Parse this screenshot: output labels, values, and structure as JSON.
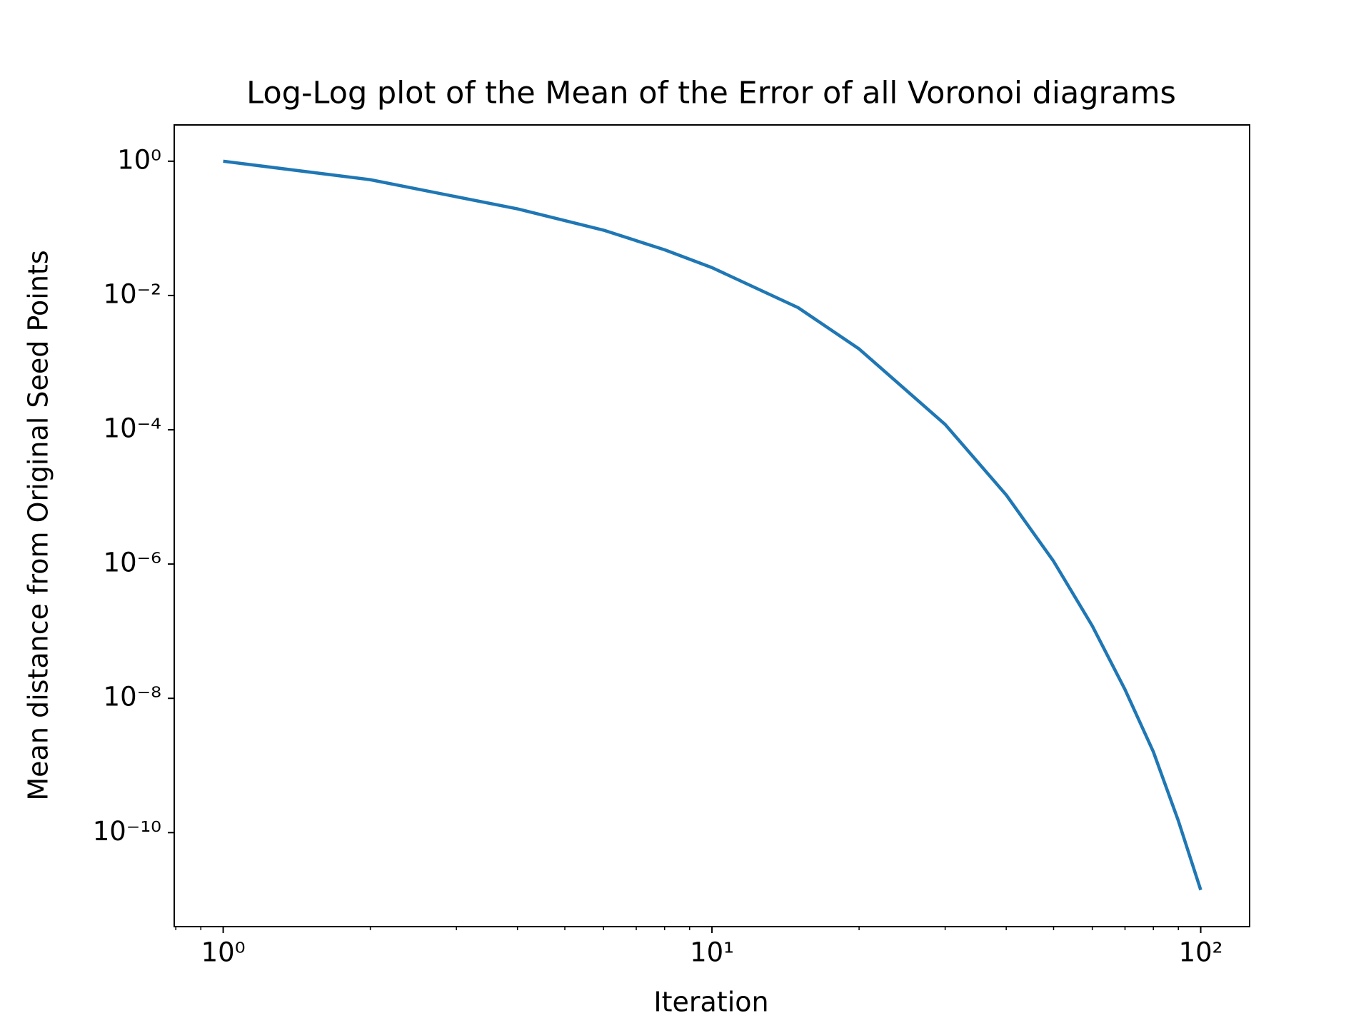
{
  "chart_data": {
    "type": "line",
    "title": "Log-Log plot of the Mean of the Error of all Voronoi diagrams",
    "xlabel": "Iteration",
    "ylabel": "Mean distance from Original Seed Points",
    "xscale": "log",
    "yscale": "log",
    "x": [
      1,
      2,
      4,
      6,
      8,
      10,
      15,
      20,
      30,
      40,
      50,
      60,
      70,
      80,
      90,
      100
    ],
    "series": [
      {
        "color": "#1f77b4",
        "values": [
          1,
          0.53,
          0.195,
          0.094,
          0.048,
          0.026,
          0.0066,
          0.0016,
          0.00012,
          1.07e-05,
          1.1e-06,
          1.2e-07,
          1.35e-08,
          1.6e-09,
          1.5e-10,
          1.4e-11
        ]
      }
    ],
    "xlim": [
      0.794,
      125.9
    ],
    "ylim": [
      3.98e-12,
      3.47
    ],
    "xticks": [
      {
        "value": 1,
        "label": "10⁰"
      },
      {
        "value": 10,
        "label": "10¹"
      },
      {
        "value": 100,
        "label": "10²"
      }
    ],
    "xminorticks": [
      0.8,
      0.9,
      2,
      3,
      4,
      5,
      6,
      7,
      8,
      9,
      20,
      30,
      40,
      50,
      60,
      70,
      80,
      90
    ],
    "yticks": [
      {
        "value": 1,
        "label": "10⁰"
      },
      {
        "value": 0.01,
        "label": "10⁻²"
      },
      {
        "value": 0.0001,
        "label": "10⁻⁴"
      },
      {
        "value": 1e-06,
        "label": "10⁻⁶"
      },
      {
        "value": 1e-08,
        "label": "10⁻⁸"
      },
      {
        "value": 1e-10,
        "label": "10⁻¹⁰"
      }
    ],
    "grid": false
  }
}
